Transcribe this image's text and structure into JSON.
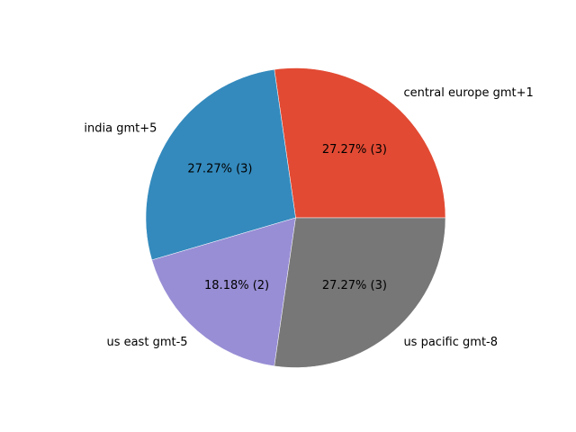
{
  "chart_data": {
    "type": "pie",
    "title": "",
    "start_angle_deg": 0,
    "direction": "counterclockwise",
    "slices": [
      {
        "label": "central europe gmt+1",
        "value": 3,
        "pct_text": "27.27%  (3)",
        "color": "#e24a33"
      },
      {
        "label": "india gmt+5",
        "value": 3,
        "pct_text": "27.27%  (3)",
        "color": "#348abd"
      },
      {
        "label": "us east gmt-5",
        "value": 2,
        "pct_text": "18.18%  (2)",
        "color": "#988ed5"
      },
      {
        "label": "us pacific gmt-8",
        "value": 3,
        "pct_text": "27.27%  (3)",
        "color": "#777777"
      }
    ]
  }
}
